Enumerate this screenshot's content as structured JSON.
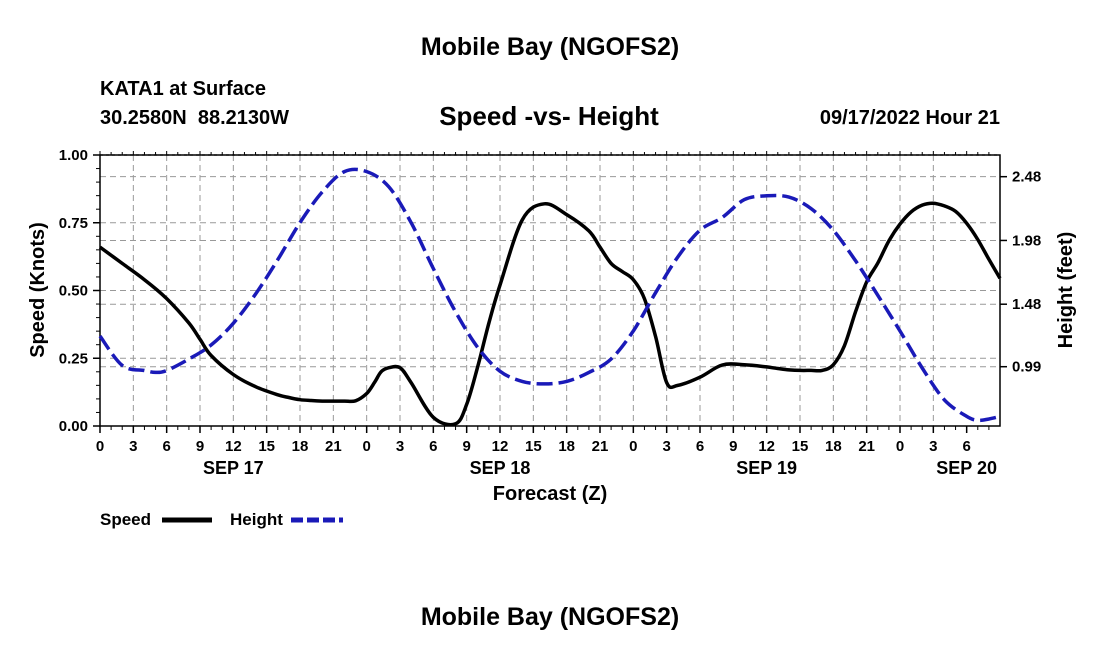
{
  "header": {
    "title": "Mobile Bay (NGOFS2)",
    "station": "KATA1 at Surface",
    "coords": "30.2580N  88.2130W",
    "subtitle": "Speed -vs- Height",
    "datetime": "09/17/2022 Hour 21"
  },
  "footer": {
    "title": "Mobile Bay (NGOFS2)"
  },
  "colors": {
    "speed": "#000000",
    "height": "#1a1ab8",
    "grid": "#999999"
  },
  "chart_data": {
    "type": "line",
    "title": "Speed -vs- Height",
    "xlabel": "Forecast (Z)",
    "ylabel": "Speed (Knots)",
    "y2label": "Height (feet)",
    "x_hours_range": [
      0,
      81
    ],
    "x_tick_step_hours": 3,
    "x_tick_labels": [
      "0",
      "3",
      "6",
      "9",
      "12",
      "15",
      "18",
      "21",
      "0",
      "3",
      "6",
      "9",
      "12",
      "15",
      "18",
      "21",
      "0",
      "3",
      "6",
      "9",
      "12",
      "15",
      "18",
      "21",
      "0",
      "3",
      "6"
    ],
    "date_labels": [
      {
        "label": "SEP 17",
        "hour": 12
      },
      {
        "label": "SEP 18",
        "hour": 36
      },
      {
        "label": "SEP 19",
        "hour": 60
      },
      {
        "label": "SEP 20",
        "hour": 78
      }
    ],
    "ylim": [
      0,
      1.0
    ],
    "yticks": [
      0.0,
      0.25,
      0.5,
      0.75,
      1.0
    ],
    "ytick_labels": [
      "0.00",
      "0.25",
      "0.50",
      "0.75",
      "1.00"
    ],
    "y2lim": [
      0.525,
      2.65
    ],
    "y2ticks": [
      0.99,
      1.48,
      1.98,
      2.48
    ],
    "y2tick_labels": [
      "0.99",
      "1.48",
      "1.98",
      "2.48"
    ],
    "grid": true,
    "legend_position": "bottom-left",
    "series": [
      {
        "name": "Speed",
        "axis": "left",
        "style": "solid",
        "x": [
          0,
          2,
          4,
          6,
          8,
          9,
          10,
          12,
          14,
          16,
          17,
          18,
          19,
          20,
          21,
          22,
          23,
          24,
          24.7,
          25.3,
          26,
          27,
          28,
          30,
          32,
          33,
          34,
          35,
          36,
          38,
          40,
          42,
          44,
          45,
          46,
          47,
          48,
          49,
          50,
          51,
          52,
          54,
          56,
          58,
          60,
          61,
          62,
          63,
          64,
          65,
          66,
          67,
          68,
          69,
          70,
          71,
          72,
          73,
          74,
          75,
          76,
          77,
          78,
          79,
          80,
          81
        ],
        "values": [
          0.66,
          0.6,
          0.54,
          0.47,
          0.38,
          0.32,
          0.26,
          0.19,
          0.145,
          0.115,
          0.105,
          0.097,
          0.094,
          0.092,
          0.092,
          0.092,
          0.093,
          0.12,
          0.16,
          0.2,
          0.215,
          0.215,
          0.16,
          0.032,
          0.008,
          0.08,
          0.22,
          0.38,
          0.52,
          0.76,
          0.82,
          0.78,
          0.72,
          0.66,
          0.6,
          0.57,
          0.54,
          0.47,
          0.33,
          0.16,
          0.15,
          0.18,
          0.225,
          0.226,
          0.218,
          0.212,
          0.207,
          0.205,
          0.205,
          0.205,
          0.226,
          0.296,
          0.422,
          0.532,
          0.601,
          0.683,
          0.745,
          0.79,
          0.815,
          0.822,
          0.812,
          0.792,
          0.748,
          0.688,
          0.615,
          0.545
        ]
      },
      {
        "name": "Height",
        "axis": "right",
        "style": "dashed",
        "x": [
          0,
          2,
          4,
          5,
          6,
          8,
          10,
          12,
          14,
          16,
          18,
          20,
          22,
          24,
          26,
          28,
          30,
          32,
          34,
          36,
          38,
          40,
          42,
          44,
          46,
          48,
          50,
          52,
          54,
          56,
          58,
          60,
          62,
          64,
          66,
          68,
          70,
          72,
          74,
          76,
          78,
          79,
          80,
          81
        ],
        "values": [
          1.23,
          1.0,
          0.96,
          0.945,
          0.96,
          1.05,
          1.16,
          1.33,
          1.56,
          1.83,
          2.12,
          2.36,
          2.52,
          2.52,
          2.4,
          2.12,
          1.76,
          1.42,
          1.14,
          0.955,
          0.875,
          0.855,
          0.875,
          0.945,
          1.05,
          1.27,
          1.57,
          1.85,
          2.06,
          2.16,
          2.3,
          2.33,
          2.32,
          2.23,
          2.06,
          1.82,
          1.55,
          1.27,
          0.98,
          0.73,
          0.6,
          0.57,
          0.58,
          0.6
        ]
      }
    ],
    "legend": [
      {
        "label": "Speed",
        "series": "Speed"
      },
      {
        "label": "Height",
        "series": "Height"
      }
    ]
  }
}
